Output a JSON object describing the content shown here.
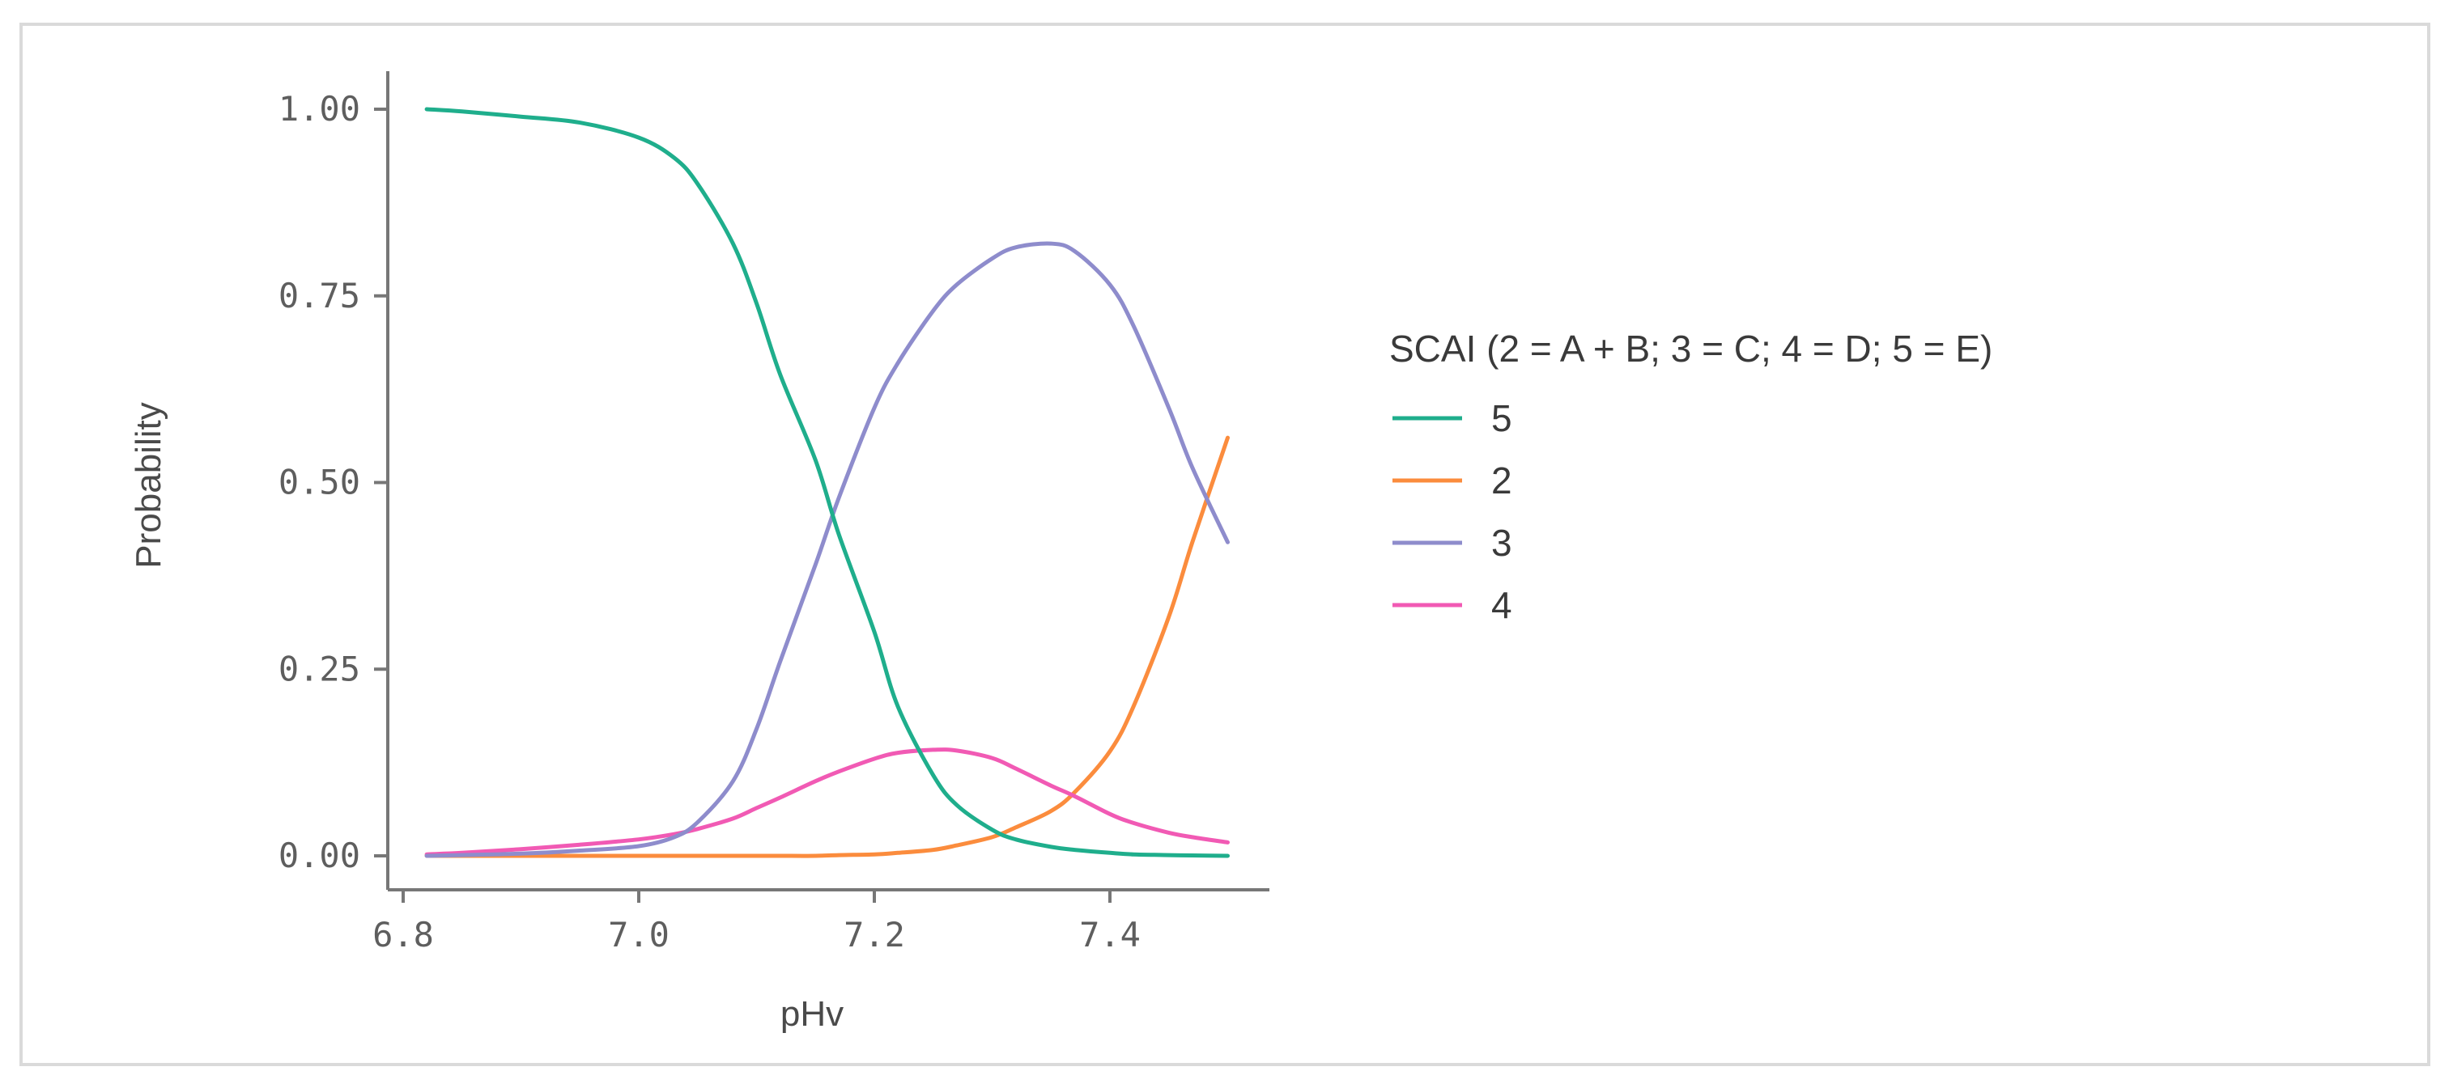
{
  "chart_data": {
    "type": "line",
    "title": "",
    "xlabel": "pHv",
    "ylabel": "Probability",
    "xlim": [
      6.8,
      7.52
    ],
    "ylim": [
      0,
      1.0
    ],
    "x_ticks": [
      6.8,
      7.0,
      7.2,
      7.4
    ],
    "x_tick_labels": [
      "6.8",
      "7.0",
      "7.2",
      "7.4"
    ],
    "y_ticks": [
      0,
      0.25,
      0.5,
      0.75,
      1.0
    ],
    "y_tick_labels": [
      "0.00",
      "0.25",
      "0.50",
      "0.75",
      "1.00"
    ],
    "grid": false,
    "legend": {
      "title": "SCAI (2 = A + B; 3 = C; 4 = D; 5 = E)",
      "placement": "right"
    },
    "x": [
      6.82,
      6.85,
      6.9,
      6.95,
      7.0,
      7.03,
      7.05,
      7.08,
      7.1,
      7.12,
      7.15,
      7.17,
      7.2,
      7.22,
      7.25,
      7.27,
      7.3,
      7.32,
      7.35,
      7.37,
      7.4,
      7.42,
      7.45,
      7.47,
      7.5
    ],
    "series": [
      {
        "name": "5",
        "color": "#1fae8c",
        "values": [
          1.0,
          0.997,
          0.99,
          0.982,
          0.962,
          0.935,
          0.9,
          0.82,
          0.74,
          0.645,
          0.53,
          0.43,
          0.3,
          0.2,
          0.108,
          0.068,
          0.035,
          0.022,
          0.012,
          0.008,
          0.004,
          0.002,
          0.001,
          0.0005,
          0.0
        ]
      },
      {
        "name": "2",
        "color": "#fb8c3d",
        "values": [
          0.0,
          0.0,
          0.0,
          0.0,
          0.0,
          0.0,
          0.0,
          0.0,
          0.0,
          0.0,
          0.0,
          0.001,
          0.002,
          0.004,
          0.008,
          0.014,
          0.025,
          0.038,
          0.06,
          0.085,
          0.14,
          0.2,
          0.32,
          0.42,
          0.56
        ]
      },
      {
        "name": "3",
        "color": "#8e8ccc",
        "values": [
          0.0,
          0.001,
          0.003,
          0.007,
          0.013,
          0.025,
          0.045,
          0.1,
          0.17,
          0.26,
          0.39,
          0.48,
          0.6,
          0.66,
          0.73,
          0.765,
          0.8,
          0.815,
          0.82,
          0.81,
          0.765,
          0.71,
          0.6,
          0.52,
          0.42
        ]
      },
      {
        "name": "4",
        "color": "#f15ab4",
        "values": [
          0.002,
          0.004,
          0.009,
          0.015,
          0.022,
          0.029,
          0.036,
          0.05,
          0.064,
          0.078,
          0.1,
          0.113,
          0.13,
          0.138,
          0.142,
          0.141,
          0.131,
          0.117,
          0.094,
          0.08,
          0.056,
          0.044,
          0.031,
          0.025,
          0.018
        ]
      }
    ]
  }
}
